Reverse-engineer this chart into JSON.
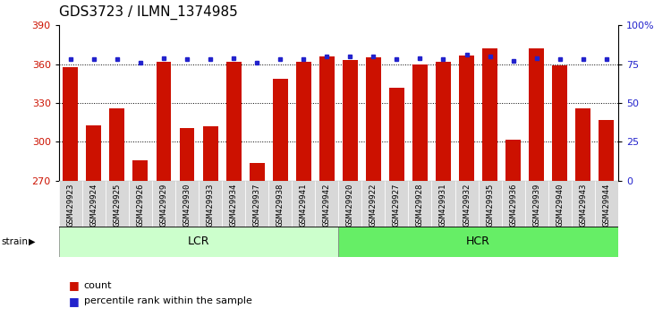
{
  "title": "GDS3723 / ILMN_1374985",
  "samples": [
    "GSM429923",
    "GSM429924",
    "GSM429925",
    "GSM429926",
    "GSM429929",
    "GSM429930",
    "GSM429933",
    "GSM429934",
    "GSM429937",
    "GSM429938",
    "GSM429941",
    "GSM429942",
    "GSM429920",
    "GSM429922",
    "GSM429927",
    "GSM429928",
    "GSM429931",
    "GSM429932",
    "GSM429935",
    "GSM429936",
    "GSM429939",
    "GSM429940",
    "GSM429943",
    "GSM429944"
  ],
  "counts": [
    358,
    313,
    326,
    286,
    362,
    311,
    312,
    362,
    284,
    349,
    362,
    366,
    363,
    365,
    342,
    360,
    362,
    367,
    372,
    302,
    372,
    359,
    326,
    317
  ],
  "percentile_ranks": [
    78,
    78,
    78,
    76,
    79,
    78,
    78,
    79,
    76,
    78,
    78,
    80,
    80,
    80,
    78,
    79,
    78,
    81,
    80,
    77,
    79,
    78,
    78,
    78
  ],
  "lcr_count": 12,
  "hcr_count": 12,
  "bar_color": "#cc1100",
  "dot_color": "#2222cc",
  "ylim_left": [
    270,
    390
  ],
  "ylim_right": [
    0,
    100
  ],
  "yticks_left": [
    270,
    300,
    330,
    360,
    390
  ],
  "yticks_right": [
    0,
    25,
    50,
    75,
    100
  ],
  "grid_values": [
    300,
    330,
    360
  ],
  "plot_bg": "#ffffff",
  "tick_bg": "#d8d8d8",
  "lcr_color": "#ccffcc",
  "hcr_color": "#66ee66",
  "title_fontsize": 11,
  "tick_fontsize": 6.5,
  "legend_fontsize": 8
}
